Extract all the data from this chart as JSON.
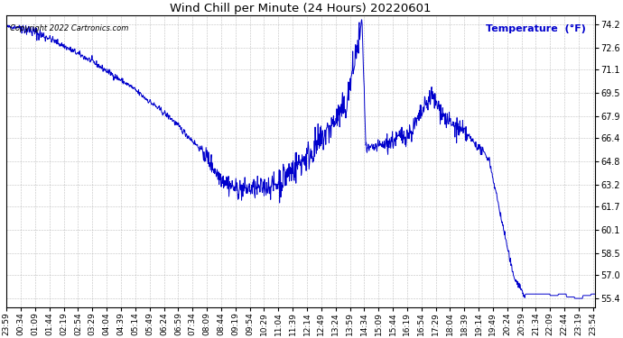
{
  "title": "Wind Chill per Minute (24 Hours) 20220601",
  "legend_label": "Temperature  (°F)",
  "copyright": "Copyright 2022 Cartronics.com",
  "line_color": "#0000cc",
  "legend_color": "#0000cc",
  "background_color": "#ffffff",
  "grid_color": "#b0b0b0",
  "yticks": [
    55.4,
    57.0,
    58.5,
    60.1,
    61.7,
    63.2,
    64.8,
    66.4,
    67.9,
    69.5,
    71.1,
    72.6,
    74.2
  ],
  "ylim": [
    54.8,
    74.8
  ],
  "title_fontsize": 9.5,
  "tick_fontsize": 6.5,
  "copyright_fontsize": 6.0,
  "legend_fontsize": 8.0,
  "linewidth": 0.7
}
